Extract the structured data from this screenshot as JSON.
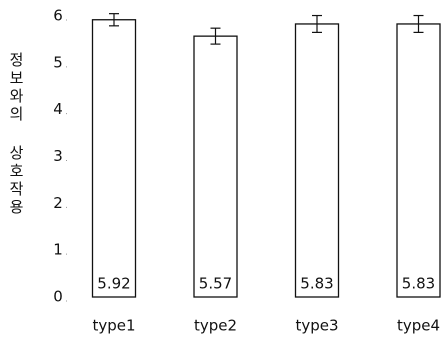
{
  "chart_data": {
    "type": "bar",
    "y_label": "정보와의 상호작용",
    "categories": [
      "type1",
      "type2",
      "type3",
      "type4"
    ],
    "values": [
      5.92,
      5.57,
      5.83,
      5.83
    ],
    "errors": [
      0.13,
      0.17,
      0.18,
      0.18
    ],
    "color": "#ffffff",
    "ylim": [
      0,
      6
    ],
    "yticks": [
      0,
      1,
      2,
      3,
      4,
      5,
      6
    ]
  }
}
